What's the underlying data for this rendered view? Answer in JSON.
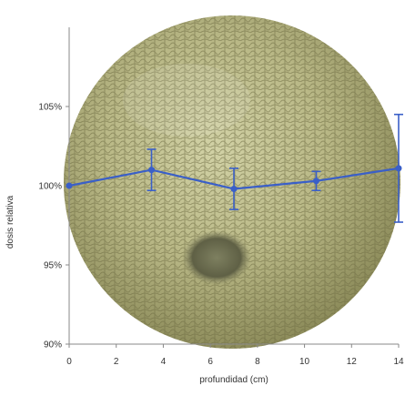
{
  "chart_data": {
    "type": "line",
    "xlabel": "profundidad (cm)",
    "ylabel": "dosis relativa",
    "xlim": [
      0,
      14
    ],
    "ylim": [
      90,
      110
    ],
    "x_ticks": [
      0,
      2,
      4,
      6,
      8,
      10,
      12,
      14
    ],
    "y_ticks": [
      90,
      95,
      100,
      105
    ],
    "y_tick_labels": [
      "90%",
      "95%",
      "100%",
      "105%"
    ],
    "grid": false,
    "background": "photo of a cantaloupe melon",
    "series": [
      {
        "x": [
          0,
          3.5,
          7,
          10.5,
          14
        ],
        "y": [
          100.0,
          101.0,
          99.8,
          100.3,
          101.1
        ],
        "error": [
          0,
          1.3,
          1.3,
          0.6,
          3.4
        ],
        "color": "#3a5fc8"
      }
    ]
  }
}
